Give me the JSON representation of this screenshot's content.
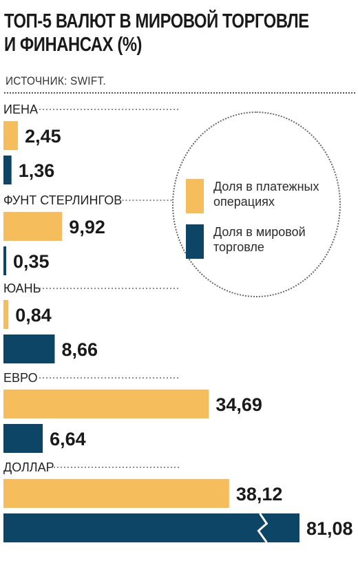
{
  "chart_data": {
    "type": "bar",
    "orientation": "horizontal",
    "title": [
      "ТОП-5 ВАЛЮТ В МИРОВОЙ ТОРГОВЛЕ",
      "И ФИНАНСАХ (%)"
    ],
    "source": "ИСТОЧНИК: SWIFT.",
    "categories": [
      "ИЕНА",
      "ФУНТ СТЕРЛИНГОВ",
      "ЮАНЬ",
      "ЕВРО",
      "ДОЛЛАР"
    ],
    "series": [
      {
        "name": "Доля в платежных операциях",
        "color": "#f5bd5c",
        "values": [
          2.45,
          9.92,
          0.84,
          34.69,
          38.12
        ],
        "labels": [
          "2,45",
          "9,92",
          "0,84",
          "34,69",
          "38,12"
        ]
      },
      {
        "name": "Доля в мировой торговле",
        "color": "#0c4566",
        "values": [
          1.36,
          0.35,
          8.66,
          6.64,
          81.08
        ],
        "labels": [
          "1,36",
          "0,35",
          "8,66",
          "6,64",
          "81,08"
        ]
      }
    ],
    "broken_bars": [
      {
        "category": "ДОЛЛАР",
        "series": 1
      }
    ],
    "legend_position": "right, inside dotted circle"
  }
}
